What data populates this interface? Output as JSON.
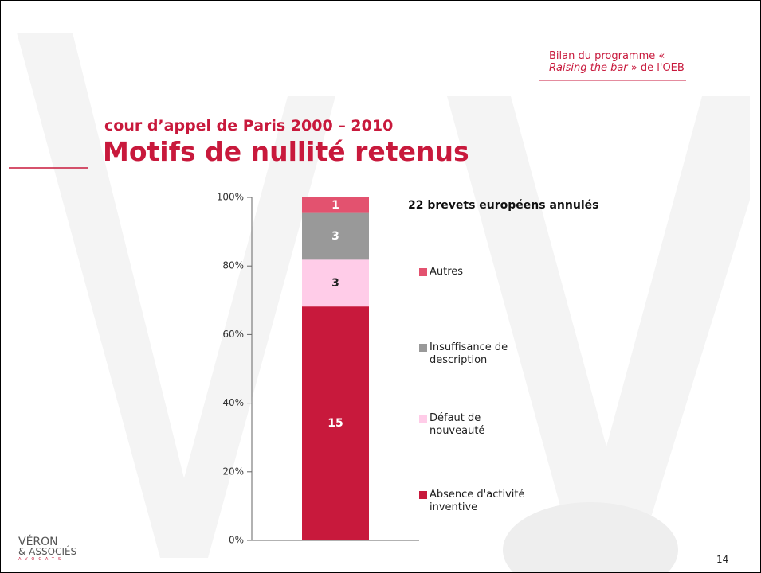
{
  "header": {
    "text_before": "Bilan du programme « ",
    "text_italic": "Raising the bar",
    "text_after": " » de l'OEB"
  },
  "subtitle": "cour d’appel de Paris 2000 – 2010",
  "title": "Motifs de nullité retenus",
  "chart_data": {
    "type": "stacked_percent",
    "annotation": "22 brevets européens annulés",
    "categories": [
      null
    ],
    "series": [
      {
        "name": "Absence d'activité inventive",
        "color": "#c8193c",
        "label_color": "#ffffff",
        "values": [
          15
        ]
      },
      {
        "name": "Défaut de nouveauté",
        "color": "#ffcce8",
        "label_color": "#222222",
        "values": [
          3
        ]
      },
      {
        "name": "Insuffisance de description",
        "color": "#999999",
        "label_color": "#ffffff",
        "values": [
          3
        ]
      },
      {
        "name": "Autres",
        "color": "#e3526f",
        "label_color": "#ffffff",
        "values": [
          1
        ]
      }
    ],
    "ylim": [
      0,
      100
    ],
    "yticks": [
      {
        "value": 0,
        "label": "0%"
      },
      {
        "value": 20,
        "label": "20%"
      },
      {
        "value": 40,
        "label": "40%"
      },
      {
        "value": 60,
        "label": "60%"
      },
      {
        "value": 80,
        "label": "80%"
      },
      {
        "value": 100,
        "label": "100%"
      }
    ]
  },
  "logo": {
    "name": "VÉRON",
    "sub": "& ASSOCIÉS",
    "tag": "AVOCATS"
  },
  "page_number": "14"
}
